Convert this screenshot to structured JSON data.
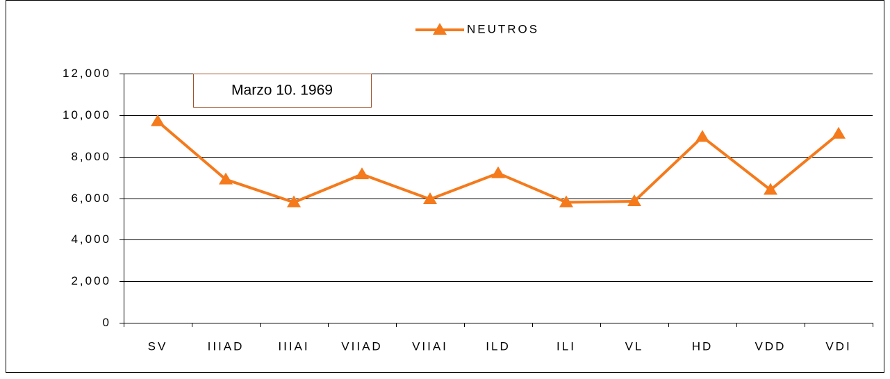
{
  "chart_data": {
    "type": "line",
    "annotation": "Marzo 10. 1969",
    "categories": [
      "SV",
      "IIIAD",
      "IIIAI",
      "VIIAD",
      "VIIAI",
      "ILD",
      "ILI",
      "VL",
      "HD",
      "VDD",
      "VDI"
    ],
    "series": [
      {
        "name": "NEUTROS",
        "color": "#f47a1c",
        "values": [
          9700,
          6900,
          5800,
          7150,
          5950,
          7200,
          5800,
          5850,
          8950,
          6400,
          9100
        ]
      }
    ],
    "ylim": [
      0,
      12000
    ],
    "yticks": [
      0,
      {
        "value": 2000,
        "label": "2,000"
      },
      {
        "value": 4000,
        "label": "4,000"
      },
      {
        "value": 6000,
        "label": "6,000"
      },
      {
        "value": 8000,
        "label": "8,000"
      },
      {
        "value": 10000,
        "label": "10,000"
      },
      {
        "value": 12000,
        "label": "12,000"
      }
    ],
    "grid": true,
    "legend": "top"
  }
}
